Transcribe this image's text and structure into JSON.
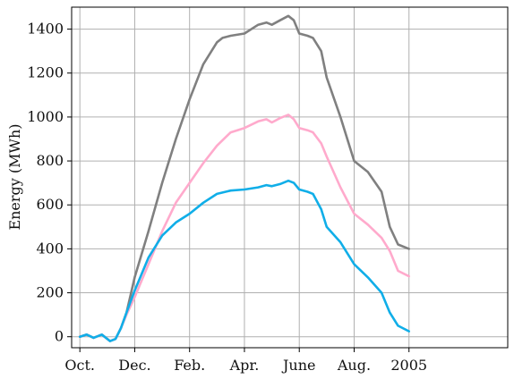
{
  "chart_data": {
    "type": "line",
    "title": "",
    "xlabel": "",
    "ylabel": "Energy (MWh)",
    "xlim": [
      -0.3,
      15.6
    ],
    "ylim": [
      -50,
      1500
    ],
    "grid": true,
    "legend": "none",
    "x_ticks": [
      {
        "value": 0,
        "label": "Oct."
      },
      {
        "value": 2,
        "label": "Dec."
      },
      {
        "value": 4,
        "label": "Feb."
      },
      {
        "value": 6,
        "label": "Apr."
      },
      {
        "value": 8,
        "label": "June"
      },
      {
        "value": 10,
        "label": "Aug."
      },
      {
        "value": 12,
        "label": "2005"
      }
    ],
    "y_ticks": [
      0,
      200,
      400,
      600,
      800,
      1000,
      1200,
      1400
    ],
    "series": [
      {
        "color": "#808080",
        "x": [
          0,
          0.25,
          0.5,
          0.8,
          1.1,
          1.3,
          1.5,
          1.7,
          2.0,
          2.5,
          3.0,
          3.5,
          4.0,
          4.5,
          5.0,
          5.2,
          5.5,
          6.0,
          6.5,
          6.8,
          7.0,
          7.3,
          7.6,
          7.8,
          8.0,
          8.3,
          8.5,
          8.8,
          9.0,
          9.5,
          10.0,
          10.5,
          11.0,
          11.3,
          11.6,
          12.0
        ],
        "values": [
          0,
          10,
          -5,
          10,
          -20,
          -10,
          40,
          110,
          270,
          480,
          700,
          900,
          1080,
          1240,
          1340,
          1360,
          1370,
          1380,
          1420,
          1430,
          1420,
          1440,
          1460,
          1440,
          1380,
          1370,
          1360,
          1300,
          1180,
          1000,
          800,
          750,
          660,
          500,
          420,
          400
        ]
      },
      {
        "color": "#ffaacc",
        "x": [
          0,
          0.25,
          0.5,
          0.8,
          1.1,
          1.3,
          1.5,
          1.7,
          2.0,
          2.5,
          3.0,
          3.5,
          4.0,
          4.5,
          5.0,
          5.5,
          6.0,
          6.5,
          6.8,
          7.0,
          7.3,
          7.6,
          7.8,
          8.0,
          8.3,
          8.5,
          8.8,
          9.0,
          9.5,
          10.0,
          10.5,
          11.0,
          11.3,
          11.6,
          12.0
        ],
        "values": [
          0,
          10,
          -5,
          10,
          -20,
          -10,
          40,
          100,
          180,
          330,
          480,
          610,
          700,
          790,
          870,
          930,
          950,
          980,
          990,
          975,
          995,
          1010,
          990,
          950,
          940,
          930,
          880,
          820,
          680,
          560,
          510,
          450,
          390,
          300,
          275
        ]
      },
      {
        "color": "#10aee8",
        "x": [
          0,
          0.25,
          0.5,
          0.8,
          1.1,
          1.3,
          1.5,
          1.7,
          2.0,
          2.5,
          3.0,
          3.5,
          4.0,
          4.5,
          5.0,
          5.5,
          6.0,
          6.5,
          6.8,
          7.0,
          7.3,
          7.6,
          7.8,
          8.0,
          8.3,
          8.5,
          8.8,
          9.0,
          9.5,
          10.0,
          10.5,
          11.0,
          11.3,
          11.6,
          12.0
        ],
        "values": [
          0,
          10,
          -5,
          10,
          -20,
          -10,
          40,
          110,
          210,
          360,
          460,
          520,
          560,
          610,
          650,
          665,
          670,
          680,
          690,
          685,
          695,
          710,
          700,
          670,
          660,
          650,
          580,
          500,
          430,
          330,
          270,
          200,
          110,
          50,
          25
        ]
      }
    ]
  }
}
